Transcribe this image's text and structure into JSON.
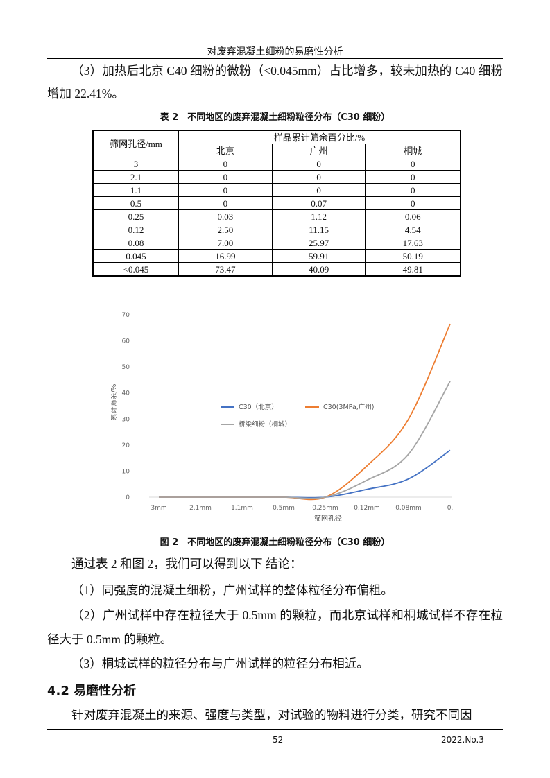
{
  "header": {
    "title": "对废弃混凝土细粉的易磨性分析"
  },
  "paragraphs_top": [
    "（3）加热后北京 C40 细粉的微粉（<0.045mm）占比增多，较未加热的 C40 细粉增加 22.41%。"
  ],
  "table": {
    "caption": "表 2　不同地区的废弃混凝土细粉粒径分布（C30 细粉）",
    "row_header": "筛网孔径/mm",
    "group_header": "样品累计筛余百分比/%",
    "columns": [
      "北京",
      "广州",
      "桐城"
    ],
    "rows": [
      [
        "3",
        "0",
        "0",
        "0"
      ],
      [
        "2.1",
        "0",
        "0",
        "0"
      ],
      [
        "1.1",
        "0",
        "0",
        "0"
      ],
      [
        "0.5",
        "0",
        "0.07",
        "0"
      ],
      [
        "0.25",
        "0.03",
        "1.12",
        "0.06"
      ],
      [
        "0.12",
        "2.50",
        "11.15",
        "4.54"
      ],
      [
        "0.08",
        "7.00",
        "25.97",
        "17.63"
      ],
      [
        "0.045",
        "16.99",
        "59.91",
        "50.19"
      ],
      [
        "<0.045",
        "73.47",
        "40.09",
        "49.81"
      ]
    ]
  },
  "figure": {
    "type": "line",
    "x_label": "筛网孔径",
    "y_label": "累计筛余/%",
    "categories": [
      "3mm",
      "2.1mm",
      "1.1mm",
      "0.5mm",
      "0.25mm",
      "0.12mm",
      "0.08mm",
      "0."
    ],
    "ylim": [
      0,
      70
    ],
    "yticks": [
      0,
      10,
      20,
      30,
      40,
      50,
      60,
      70
    ],
    "series": [
      {
        "name": "C30（北京）",
        "color": "#4472c4",
        "values": [
          0,
          0,
          0,
          0,
          0,
          3,
          7,
          18
        ]
      },
      {
        "name": "C30(3MPa,广州)",
        "color": "#ed7d31",
        "values": [
          0,
          0,
          0,
          0,
          0,
          12,
          30,
          66.5
        ]
      },
      {
        "name": "桥梁细粉（桐城）",
        "color": "#a5a5a5",
        "values": [
          0,
          0,
          0,
          0,
          0,
          6.5,
          16.5,
          44.5
        ]
      }
    ],
    "caption": "图 2　不同地区的废弃混凝土细粉粒径分布（C30 细粉）"
  },
  "paragraphs": [
    "通过表 2 和图 2，我们可以得到以下 结论：",
    "（1）同强度的混凝土细粉，广州试样的整体粒径分布偏粗。",
    "（2）广州试样中存在粒径大于 0.5mm 的颗粒，而北京试样和桐城试样不存在粒径大于 0.5mm 的颗粒。",
    "（3）桐城试样的粒径分布与广州试样的粒径分布相近。"
  ],
  "section": {
    "heading": "4.2 易磨性分析",
    "text": "针对废弃混凝土的来源、强度与类型，对试验的物料进行分类，研究不同因"
  },
  "footer": {
    "page": "52",
    "issue": "2022.No.3"
  }
}
